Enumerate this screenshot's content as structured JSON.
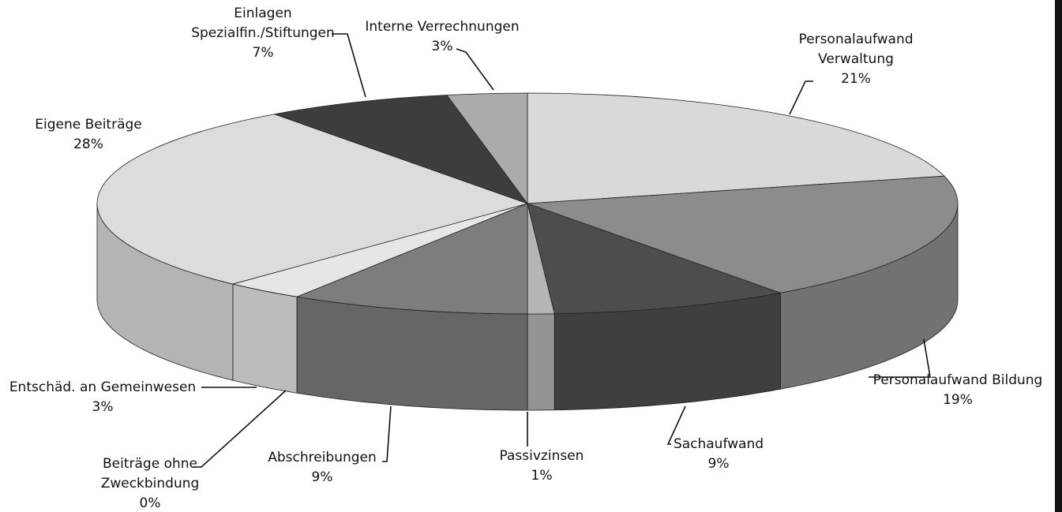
{
  "chart_data": {
    "type": "pie3d",
    "categories": [
      [
        "Personalaufwand",
        "Verwaltung"
      ],
      [
        "Personalaufwand Bildung"
      ],
      [
        "Sachaufwand"
      ],
      [
        "Passivzinsen"
      ],
      [
        "Abschreibungen"
      ],
      [
        "Beiträge ohne",
        "Zweckbindung"
      ],
      [
        "Entschäd. an Gemeinwesen"
      ],
      [
        "Eigene Beiträge"
      ],
      [
        "Einlagen",
        "Spezialfin./Stiftungen"
      ],
      [
        "Interne Verrechnungen"
      ]
    ],
    "values": [
      21,
      19,
      9,
      1,
      9,
      0,
      3,
      28,
      7,
      3
    ],
    "value_labels": [
      "21%",
      "19%",
      "9%",
      "1%",
      "9%",
      "0%",
      "3%",
      "28%",
      "7%",
      "3%"
    ],
    "colors": [
      "#d9d9d9",
      "#8c8c8c",
      "#4d4d4d",
      "#b5b5b5",
      "#7d7d7d",
      "#f2f2f2",
      "#e6e6e6",
      "#dcdcdc",
      "#3d3d3d",
      "#ababab"
    ]
  }
}
